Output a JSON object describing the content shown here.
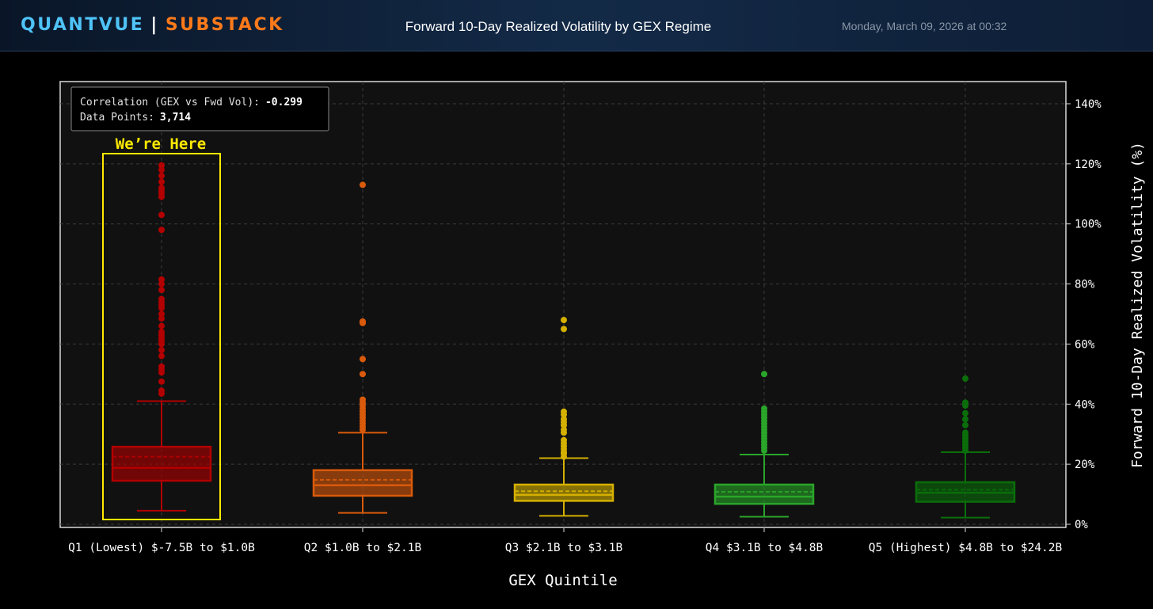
{
  "header": {
    "brand_primary": "QUANTVUE",
    "brand_separator": "|",
    "brand_secondary": "SUBSTACK",
    "title": "Forward 10-Day Realized Volatility by GEX Regime",
    "timestamp": "Monday, March 09, 2026 at 00:32"
  },
  "colors": {
    "brand_primary": "#4fc3f7",
    "brand_secondary": "#ff7a1a",
    "highlight": "#ffea00",
    "q1": "#b30000",
    "q2": "#d95a0b",
    "q3": "#d4b000",
    "q4": "#2aa52a",
    "q5": "#0a6e0a"
  },
  "chart_data": {
    "type": "box",
    "title": "",
    "xlabel": "GEX Quintile",
    "ylabel": "Forward 10-Day Realized Volatility (%)",
    "y_axis_side": "right",
    "ylim": [
      0,
      140
    ],
    "yticks": [
      0,
      20,
      40,
      60,
      80,
      100,
      120,
      140
    ],
    "ytick_labels": [
      "0%",
      "20%",
      "40%",
      "60%",
      "80%",
      "100%",
      "120%",
      "140%"
    ],
    "grid": true,
    "categories": [
      "Q1 (Lowest) $-7.5B to $1.0B",
      "Q2 $1.0B to $2.1B",
      "Q3 $2.1B to $3.1B",
      "Q4 $3.1B to $4.8B",
      "Q5 (Highest) $4.8B to $24.2B"
    ],
    "boxes": [
      {
        "whisker_low": 4.5,
        "q1": 14.5,
        "median": 18.8,
        "mean": 22.5,
        "q3": 25.8,
        "whisker_high": 41,
        "outliers": [
          43.5,
          44.5,
          47.5,
          50.5,
          51.5,
          52.5,
          56,
          58,
          60,
          61,
          62,
          63,
          64,
          66,
          68.5,
          70,
          72,
          73,
          74,
          75,
          78,
          80,
          81.5,
          98,
          103,
          109,
          110,
          111,
          112,
          114,
          116,
          118,
          119.5
        ]
      },
      {
        "whisker_low": 3.8,
        "q1": 9.5,
        "median": 13,
        "mean": 14.8,
        "q3": 18,
        "whisker_high": 30.5,
        "outliers": [
          31.5,
          32.5,
          33.5,
          34.5,
          35.5,
          36.5,
          37.5,
          38.5,
          39.5,
          40.5,
          41.5,
          50,
          55,
          67,
          67.5,
          113
        ]
      },
      {
        "whisker_low": 2.8,
        "q1": 7.8,
        "median": 9.8,
        "mean": 11,
        "q3": 13.2,
        "whisker_high": 22,
        "outliers": [
          22.5,
          23.5,
          24,
          25,
          26,
          27,
          28,
          30.5,
          31.5,
          33,
          34,
          35,
          36.5,
          37.5,
          65,
          68
        ]
      },
      {
        "whisker_low": 2.5,
        "q1": 6.8,
        "median": 9.2,
        "mean": 10.8,
        "q3": 13.2,
        "whisker_high": 23.2,
        "outliers": [
          24.5,
          25.5,
          26.5,
          27.5,
          28.5,
          29.5,
          30.5,
          31.5,
          32.5,
          33.5,
          34.5,
          35.5,
          36.5,
          37.5,
          38.5,
          50
        ]
      },
      {
        "whisker_low": 2.2,
        "q1": 7.5,
        "median": 10.5,
        "mean": 11.5,
        "q3": 14,
        "whisker_high": 24,
        "outliers": [
          24.5,
          25.5,
          26.5,
          27.5,
          28.5,
          29.5,
          30.5,
          33,
          35,
          37,
          39.5,
          40.5,
          48.5
        ]
      }
    ],
    "stats_box": {
      "correlation_label": "Correlation (GEX vs Fwd Vol):",
      "correlation_value": "-0.299",
      "datapoints_label": "Data Points:",
      "datapoints_value": "3,714"
    },
    "annotation": {
      "text": "We’re Here",
      "target_category_index": 0
    }
  }
}
